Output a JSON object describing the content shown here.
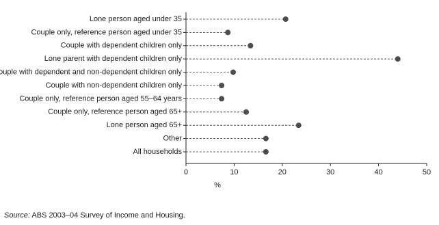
{
  "chart_data": {
    "type": "dot",
    "categories": [
      "Lone person aged under 35",
      "Couple only, reference person aged under 35",
      "Couple with dependent children only",
      "Lone parent with dependent children only",
      "Couple with dependent and non-dependent children only",
      "Couple with non-dependent children only",
      "Couple only, reference person aged 55–64 years",
      "Couple only, reference person aged 65+",
      "Lone person aged 65+",
      "Other",
      "All households"
    ],
    "values": [
      20.7,
      8.7,
      13.4,
      44.0,
      9.8,
      7.4,
      7.4,
      12.5,
      23.4,
      16.6,
      16.6
    ],
    "color": "#4d4d4d",
    "xlim": [
      0,
      50
    ],
    "xticks": [
      0,
      10,
      20,
      30,
      40,
      50
    ],
    "x_label": "%",
    "source_label": "Source:",
    "source": "ABS 2003–04 Survey of Income and Housing."
  }
}
